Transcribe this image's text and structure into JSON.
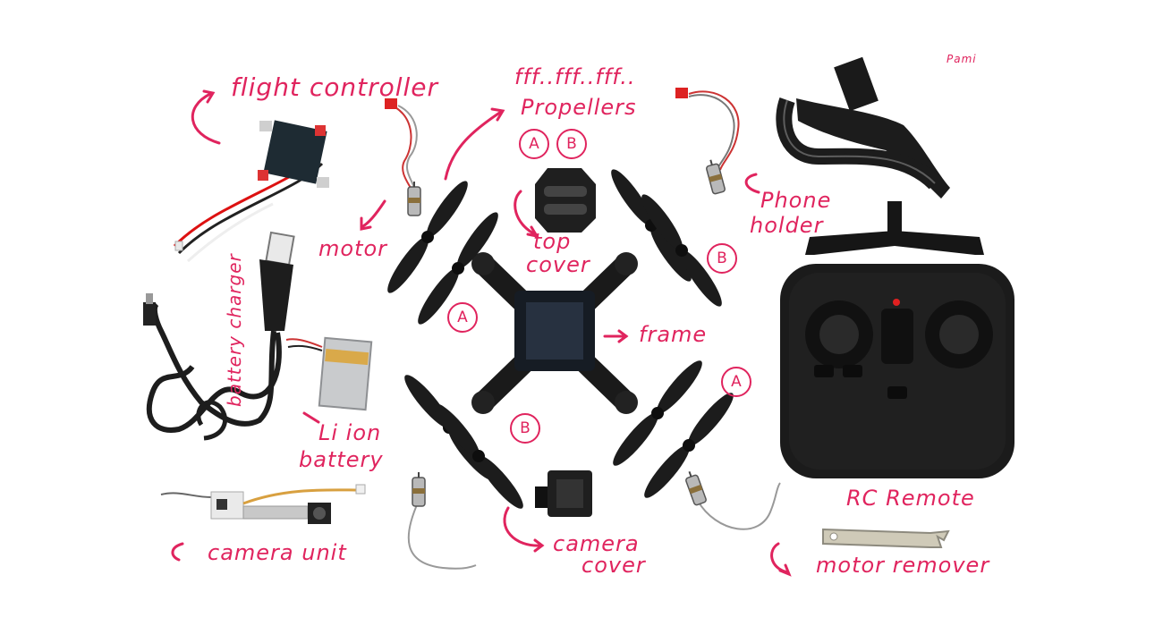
{
  "colors": {
    "annotation": "#e0245e",
    "part": "#1c1c1c",
    "background": "#ffffff"
  },
  "labels": {
    "flight_controller": "flight controller",
    "fff": "fff..fff..fff..",
    "propellers": "Propellers",
    "pami": "Pami",
    "motor": "motor",
    "top": "top",
    "cover": "cover",
    "phone": "Phone",
    "holder": "holder",
    "battery_charger": "battery charger",
    "frame": "frame",
    "li_ion": "Li ion",
    "battery": "battery",
    "rc_remote": "RC Remote",
    "camera_unit": "camera unit",
    "camera": "camera",
    "camera_cover_word": "cover",
    "motor_remover": "motor remover"
  },
  "marks": {
    "a": "A",
    "b": "B"
  }
}
